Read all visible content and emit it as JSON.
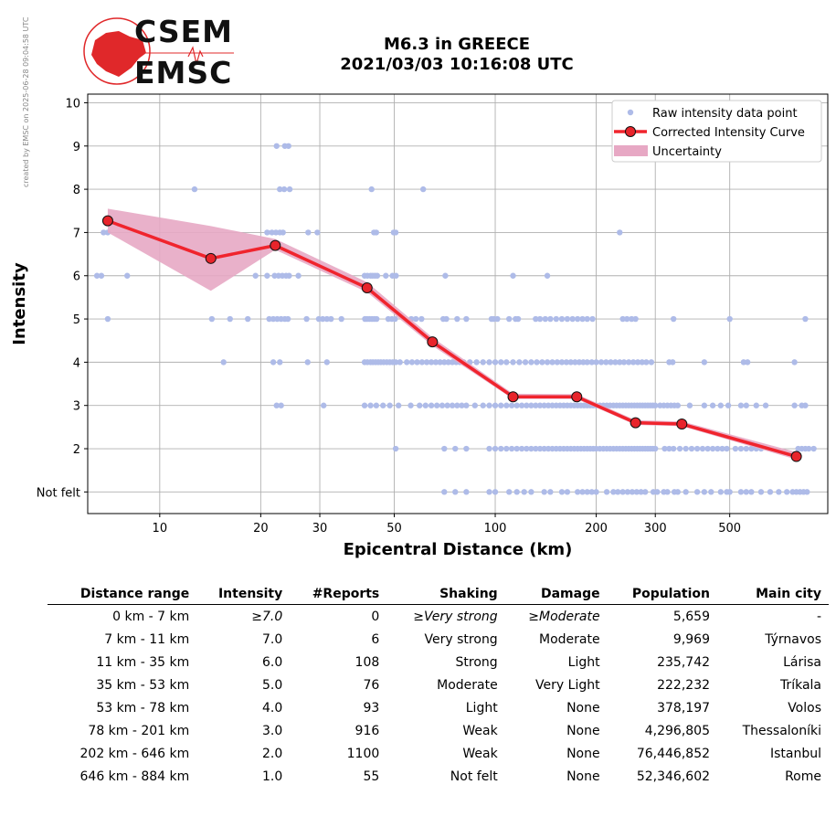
{
  "header": {
    "title_line1": "M6.3 in GREECE",
    "title_line2": "2021/03/03 10:16:08 UTC",
    "credit": "created by EMSC on 2025-06-28 09:04:58 UTC",
    "logo_top": "CSEM",
    "logo_bottom": "EMSC"
  },
  "colors": {
    "raw_points": "#aebbe8",
    "curve": "#f0242d",
    "marker_face": "#e8242b",
    "uncertainty": "#e7a8c4",
    "logo_red": "#e0282a"
  },
  "chart_data": {
    "type": "line",
    "xlabel": "Epicentral Distance (km)",
    "ylabel": "Intensity",
    "xscale": "log",
    "xlim": [
      6.1,
      980
    ],
    "ylim": [
      0.5,
      10.2
    ],
    "x_ticks": [
      10,
      20,
      30,
      50,
      100,
      200,
      300,
      500
    ],
    "y_ticks": [
      {
        "value": 1,
        "label": "Not felt"
      },
      {
        "value": 2,
        "label": "2"
      },
      {
        "value": 3,
        "label": "3"
      },
      {
        "value": 4,
        "label": "4"
      },
      {
        "value": 5,
        "label": "5"
      },
      {
        "value": 6,
        "label": "6"
      },
      {
        "value": 7,
        "label": "7"
      },
      {
        "value": 8,
        "label": "8"
      },
      {
        "value": 9,
        "label": "9"
      },
      {
        "value": 10,
        "label": "10"
      }
    ],
    "grid": true,
    "legend_position": "top-right",
    "legend": [
      {
        "label": "Raw intensity data point",
        "kind": "dot"
      },
      {
        "label": "Corrected Intensity Curve",
        "kind": "line-marker"
      },
      {
        "label": "Uncertainty",
        "kind": "band"
      }
    ],
    "corrected_curve": {
      "name": "Corrected Intensity Curve",
      "x": [
        7.0,
        14.2,
        22.1,
        41.5,
        65.0,
        113,
        175,
        262,
        360,
        790
      ],
      "y": [
        7.27,
        6.4,
        6.7,
        5.72,
        4.47,
        3.2,
        3.2,
        2.6,
        2.57,
        1.82
      ]
    },
    "uncertainty_band": {
      "name": "Uncertainty",
      "x": [
        7.0,
        14.2,
        22.1,
        41.5,
        65.0,
        113,
        175,
        262,
        360,
        790
      ],
      "upper": [
        7.55,
        7.15,
        6.85,
        5.85,
        4.57,
        3.27,
        3.26,
        2.66,
        2.63,
        1.92
      ],
      "lower": [
        7.0,
        5.65,
        6.6,
        5.62,
        4.38,
        3.15,
        3.15,
        2.55,
        2.52,
        1.75
      ]
    },
    "raw_points": {
      "name": "Raw intensity data point",
      "rows": [
        {
          "y": 10,
          "x": []
        },
        {
          "y": 9,
          "x": [
            22.3,
            23.6,
            24.2
          ]
        },
        {
          "y": 8,
          "x": [
            12.7,
            22.8,
            23.5,
            24.4,
            42.8,
            61.0
          ]
        },
        {
          "y": 7,
          "x": [
            6.8,
            7.0,
            20.9,
            21.6,
            22.2,
            22.8,
            23.3,
            27.7,
            29.5,
            43.5,
            44.2,
            49.8,
            50.5,
            235
          ]
        },
        {
          "y": 6,
          "x": [
            6.5,
            6.7,
            8.0,
            19.3,
            20.9,
            22.0,
            22.6,
            23.2,
            23.8,
            24.3,
            25.9,
            40.8,
            41.6,
            42.5,
            43.1,
            43.8,
            44.5,
            47.2,
            49.4,
            50.6,
            71.0,
            113,
            143
          ]
        },
        {
          "y": 5,
          "x": [
            7.0,
            14.3,
            16.2,
            18.3,
            21.2,
            21.8,
            22.4,
            23.0,
            23.6,
            24.1,
            27.4,
            29.8,
            30.6,
            31.5,
            32.4,
            34.8,
            40.9,
            41.5,
            42.2,
            42.9,
            43.6,
            44.3,
            48.0,
            49.2,
            50.3,
            56.2,
            58.0,
            60.3,
            70.0,
            71.5,
            77.0,
            82.0,
            97.5,
            99.0,
            101.5,
            110,
            115,
            117,
            132,
            136,
            141,
            146,
            152,
            158,
            164,
            170,
            176,
            182,
            188,
            195,
            240,
            247,
            255,
            262,
            340,
            500,
            840
          ]
        },
        {
          "y": 4,
          "x": [
            15.5,
            21.8,
            22.8,
            27.6,
            31.5,
            40.8,
            41.6,
            42.5,
            43.2,
            44.0,
            44.8,
            45.6,
            46.5,
            47.5,
            48.5,
            49.5,
            50.5,
            52.0,
            54.5,
            56.5,
            58.5,
            60.5,
            62.5,
            64.5,
            66.5,
            68.5,
            70.5,
            72.5,
            74.5,
            76.5,
            78.5,
            80.5,
            84.0,
            88.0,
            92.0,
            96.0,
            100,
            104,
            108,
            113,
            118,
            123,
            128,
            133,
            138,
            143,
            148,
            153,
            158,
            163,
            168,
            173,
            178,
            183,
            188,
            194,
            200,
            207,
            214,
            221,
            228,
            235,
            242,
            250,
            258,
            266,
            274,
            282,
            292,
            330,
            338,
            420,
            550,
            565,
            780
          ]
        },
        {
          "y": 3,
          "x": [
            22.3,
            23.0,
            30.8,
            40.8,
            42.5,
            44.2,
            46.3,
            48.5,
            51.5,
            56.0,
            59.5,
            62.0,
            64.5,
            67.0,
            69.5,
            72.0,
            74.5,
            77.0,
            79.5,
            82.0,
            87.0,
            92.0,
            96.0,
            100,
            104,
            108,
            112,
            116,
            120,
            124,
            128,
            132,
            136,
            140,
            144,
            148,
            152,
            156,
            160,
            164,
            168,
            172,
            176,
            180,
            184,
            188,
            192,
            196,
            200,
            205,
            210,
            215,
            220,
            225,
            230,
            235,
            240,
            245,
            250,
            255,
            260,
            265,
            270,
            275,
            280,
            285,
            290,
            295,
            300,
            310,
            318,
            326,
            334,
            342,
            350,
            380,
            420,
            445,
            470,
            495,
            540,
            560,
            600,
            640,
            780,
            820,
            840
          ]
        },
        {
          "y": 2,
          "x": [
            50.5,
            70.5,
            76.0,
            82.0,
            96.0,
            100,
            104,
            108,
            112,
            116,
            120,
            124,
            128,
            132,
            136,
            140,
            144,
            148,
            152,
            156,
            160,
            164,
            168,
            172,
            176,
            180,
            184,
            188,
            192,
            196,
            200,
            205,
            210,
            215,
            220,
            225,
            230,
            235,
            240,
            245,
            250,
            255,
            260,
            265,
            270,
            275,
            280,
            285,
            290,
            295,
            300,
            320,
            330,
            340,
            355,
            370,
            385,
            400,
            415,
            430,
            445,
            460,
            475,
            490,
            520,
            540,
            560,
            580,
            600,
            620,
            800,
            820,
            840,
            860,
            890
          ]
        },
        {
          "y": 1,
          "x": [
            70.5,
            76.0,
            82.0,
            96.0,
            100,
            110,
            116,
            122,
            128,
            140,
            146,
            158,
            164,
            176,
            182,
            188,
            194,
            200,
            215,
            225,
            232,
            240,
            248,
            256,
            264,
            272,
            280,
            296,
            304,
            318,
            326,
            342,
            350,
            370,
            400,
            420,
            440,
            470,
            490,
            500,
            540,
            560,
            580,
            620,
            660,
            700,
            740,
            770,
            790,
            810,
            830,
            850
          ]
        }
      ]
    }
  },
  "table": {
    "headers": [
      "Distance range",
      "Intensity",
      "#Reports",
      "Shaking",
      "Damage",
      "Population",
      "Main city"
    ],
    "rows": [
      {
        "range": "0 km -   7 km",
        "intensity": "≥7.0",
        "reports": "0",
        "shaking": "≥Very strong",
        "damage": "≥Moderate",
        "population": "5,659",
        "city": "-"
      },
      {
        "range": "7 km -   11 km",
        "intensity": "7.0",
        "reports": "6",
        "shaking": "Very strong",
        "damage": "Moderate",
        "population": "9,969",
        "city": "Týrnavos"
      },
      {
        "range": "11 km -   35 km",
        "intensity": "6.0",
        "reports": "108",
        "shaking": "Strong",
        "damage": "Light",
        "population": "235,742",
        "city": "Lárisa"
      },
      {
        "range": "35 km -   53 km",
        "intensity": "5.0",
        "reports": "76",
        "shaking": "Moderate",
        "damage": "Very Light",
        "population": "222,232",
        "city": "Tríkala"
      },
      {
        "range": "53 km -   78 km",
        "intensity": "4.0",
        "reports": "93",
        "shaking": "Light",
        "damage": "None",
        "population": "378,197",
        "city": "Volos"
      },
      {
        "range": "78 km -  201 km",
        "intensity": "3.0",
        "reports": "916",
        "shaking": "Weak",
        "damage": "None",
        "population": "4,296,805",
        "city": "Thessaloníki"
      },
      {
        "range": "202 km -  646 km",
        "intensity": "2.0",
        "reports": "1100",
        "shaking": "Weak",
        "damage": "None",
        "population": "76,446,852",
        "city": "Istanbul"
      },
      {
        "range": "646 km -  884 km",
        "intensity": "1.0",
        "reports": "55",
        "shaking": "Not felt",
        "damage": "None",
        "population": "52,346,602",
        "city": "Rome"
      }
    ]
  }
}
